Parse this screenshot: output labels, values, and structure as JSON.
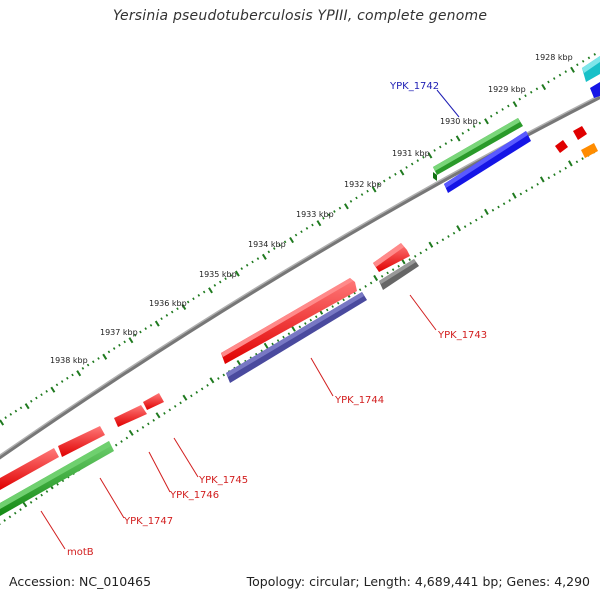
{
  "title": "Yersinia pseudotuberculosis YPIII, complete genome",
  "footer": {
    "accession": "Accession: NC_010465",
    "topology": "Topology: circular; Length: 4,689,441 bp; Genes: 4,290"
  },
  "kbp_labels": [
    "1928 kbp",
    "1929 kbp",
    "1930 kbp",
    "1931 kbp",
    "1932 kbp",
    "1933 kbp",
    "1934 kbp",
    "1935 kbp",
    "1936 kbp",
    "1937 kbp",
    "1938 kbp"
  ],
  "gene_labels": {
    "ypk1742": "YPK_1742",
    "ypk1743": "YPK_1743",
    "ypk1744": "YPK_1744",
    "ypk1745": "YPK_1745",
    "ypk1746": "YPK_1746",
    "ypk1747": "YPK_1747",
    "motB": "motB"
  },
  "colors": {
    "backbone": "#8a8a8a",
    "tick": "#1f7a1f",
    "label_blue": "#1f1fb4",
    "label_red": "#d21e1e"
  }
}
